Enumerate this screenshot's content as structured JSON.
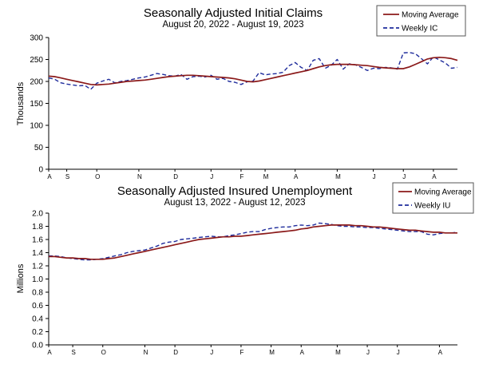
{
  "colors": {
    "moving_average": "#8b1a1a",
    "weekly": "#1f2c9c"
  },
  "chart_data": [
    {
      "type": "line",
      "title": "Seasonally Adjusted Initial Claims",
      "subtitle": "August 20, 2022 - August 19, 2023",
      "ylabel": "Thousands",
      "xlabel": "",
      "ylim": [
        0,
        300
      ],
      "yticks": [
        0,
        50,
        100,
        150,
        200,
        250,
        300
      ],
      "ytick_labels": [
        "0",
        "50",
        "100",
        "150",
        "200",
        "250",
        "300"
      ],
      "month_labels": [
        "A",
        "S",
        "O",
        "N",
        "D",
        "J",
        "F",
        "M",
        "A",
        "M",
        "J",
        "J",
        "A"
      ],
      "month_week_index": [
        0,
        3,
        8,
        15,
        21,
        27,
        32,
        36,
        41,
        48,
        54,
        59,
        64
      ],
      "legend": {
        "position": "top-right",
        "entries": [
          "Moving Average",
          "Weekly IC"
        ]
      },
      "series": [
        {
          "name": "Moving Average",
          "style": "solid",
          "values": [
            212,
            211,
            208,
            205,
            202,
            199,
            196,
            193,
            192,
            193,
            194,
            196,
            198,
            200,
            201,
            202,
            203,
            205,
            207,
            209,
            211,
            212,
            213,
            214,
            214,
            213,
            212,
            211,
            210,
            209,
            208,
            206,
            203,
            200,
            199,
            201,
            204,
            207,
            210,
            213,
            216,
            219,
            222,
            225,
            229,
            233,
            236,
            238,
            239,
            239,
            239,
            238,
            237,
            236,
            234,
            232,
            231,
            230,
            229,
            229,
            233,
            239,
            245,
            251,
            254,
            255,
            254,
            252,
            248
          ]
        },
        {
          "name": "Weekly IC",
          "style": "dashed",
          "values": [
            208,
            205,
            197,
            194,
            192,
            190,
            191,
            182,
            196,
            201,
            205,
            197,
            200,
            202,
            205,
            208,
            210,
            214,
            218,
            216,
            213,
            212,
            216,
            205,
            211,
            212,
            210,
            214,
            205,
            207,
            200,
            198,
            193,
            199,
            201,
            220,
            215,
            217,
            218,
            221,
            236,
            243,
            232,
            225,
            248,
            252,
            230,
            237,
            250,
            228,
            240,
            238,
            232,
            225,
            230,
            229,
            232,
            231,
            228,
            265,
            266,
            263,
            252,
            240,
            256,
            249,
            242,
            230,
            232
          ]
        }
      ]
    },
    {
      "type": "line",
      "title": "Seasonally Adjusted Insured Unemployment",
      "subtitle": "August 13, 2022 - August 12, 2023",
      "ylabel": "Millions",
      "xlabel": "",
      "ylim": [
        0.0,
        2.0
      ],
      "yticks": [
        0.0,
        0.2,
        0.4,
        0.6,
        0.8,
        1.0,
        1.2,
        1.4,
        1.6,
        1.8,
        2.0
      ],
      "ytick_labels": [
        "0.0",
        "0.2",
        "0.4",
        "0.6",
        "0.8",
        "1.0",
        "1.2",
        "1.4",
        "1.6",
        "1.8",
        "2.0"
      ],
      "month_labels": [
        "A",
        "S",
        "O",
        "N",
        "D",
        "J",
        "F",
        "M",
        "A",
        "M",
        "J",
        "J",
        "A"
      ],
      "month_week_index": [
        0,
        4,
        9,
        16,
        21,
        27,
        32,
        37,
        42,
        48,
        53,
        58,
        65
      ],
      "legend": {
        "position": "top-right",
        "entries": [
          "Moving Average",
          "Weekly IU"
        ]
      },
      "series": [
        {
          "name": "Moving Average",
          "style": "solid",
          "values": [
            1.34,
            1.34,
            1.33,
            1.32,
            1.32,
            1.31,
            1.31,
            1.3,
            1.3,
            1.3,
            1.31,
            1.32,
            1.34,
            1.36,
            1.38,
            1.4,
            1.42,
            1.44,
            1.46,
            1.48,
            1.5,
            1.52,
            1.54,
            1.56,
            1.58,
            1.6,
            1.61,
            1.62,
            1.63,
            1.64,
            1.64,
            1.65,
            1.65,
            1.66,
            1.67,
            1.68,
            1.69,
            1.7,
            1.71,
            1.72,
            1.73,
            1.74,
            1.76,
            1.77,
            1.79,
            1.8,
            1.81,
            1.82,
            1.82,
            1.82,
            1.82,
            1.81,
            1.81,
            1.8,
            1.79,
            1.79,
            1.78,
            1.77,
            1.76,
            1.75,
            1.74,
            1.74,
            1.73,
            1.72,
            1.71,
            1.71,
            1.7,
            1.7,
            1.7
          ]
        },
        {
          "name": "Weekly IU",
          "style": "dashed",
          "values": [
            1.35,
            1.35,
            1.34,
            1.32,
            1.31,
            1.3,
            1.29,
            1.29,
            1.3,
            1.31,
            1.33,
            1.35,
            1.37,
            1.4,
            1.42,
            1.43,
            1.44,
            1.47,
            1.5,
            1.54,
            1.56,
            1.57,
            1.6,
            1.61,
            1.62,
            1.63,
            1.64,
            1.65,
            1.64,
            1.64,
            1.66,
            1.67,
            1.69,
            1.71,
            1.72,
            1.72,
            1.75,
            1.77,
            1.78,
            1.79,
            1.79,
            1.81,
            1.82,
            1.81,
            1.82,
            1.85,
            1.84,
            1.83,
            1.81,
            1.8,
            1.8,
            1.79,
            1.79,
            1.78,
            1.78,
            1.77,
            1.76,
            1.75,
            1.74,
            1.73,
            1.72,
            1.72,
            1.72,
            1.68,
            1.67,
            1.69,
            1.7,
            1.7,
            1.71
          ]
        }
      ]
    }
  ]
}
